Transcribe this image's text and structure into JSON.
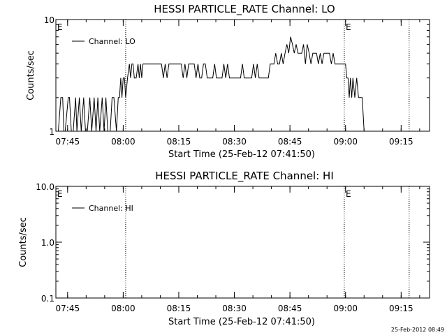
{
  "timestamp": "25-Feb-2012 08:49",
  "chart_data": [
    {
      "type": "line",
      "title": "HESSI PARTICLE_RATE Channel: LO",
      "xlabel": "Start Time (25-Feb-12 07:41:50)",
      "ylabel": "Counts/sec",
      "yscale": "log",
      "xlim": [
        "07:41:50",
        "09:22:40"
      ],
      "ylim": [
        1,
        10
      ],
      "x_ticks": [
        "07:45",
        "08:00",
        "08:15",
        "08:30",
        "08:45",
        "09:00",
        "09:15"
      ],
      "y_ticks": [
        "1",
        "10"
      ],
      "legend": {
        "placement": "top-left",
        "entry": "Channel: LO"
      },
      "markers": [
        {
          "label": "E",
          "time": "07:41:50"
        },
        {
          "label": "",
          "time": "08:00:40"
        },
        {
          "label": "E",
          "time": "08:59:40"
        },
        {
          "label": "",
          "time": "09:17:10"
        }
      ],
      "series": [
        {
          "name": "Channel: LO",
          "x": [
            "07:42:30",
            "07:43:10",
            "07:43:40",
            "07:44:00",
            "07:44:20",
            "07:45:10",
            "07:45:30",
            "07:46:00",
            "07:46:30",
            "07:47:10",
            "07:47:30",
            "07:48:10",
            "07:48:40",
            "07:49:20",
            "07:49:50",
            "07:50:20",
            "07:51:00",
            "07:51:30",
            "07:52:10",
            "07:52:40",
            "07:53:10",
            "07:53:40",
            "07:54:20",
            "07:54:50",
            "07:55:20",
            "07:55:50",
            "07:56:30",
            "07:57:00",
            "07:57:30",
            "07:58:10",
            "07:58:40",
            "07:59:00",
            "07:59:20",
            "07:59:40",
            "08:00:00",
            "08:00:20",
            "08:00:40",
            "08:01:10",
            "08:01:40",
            "08:02:00",
            "08:02:20",
            "08:02:40",
            "08:03:00",
            "08:03:30",
            "08:04:00",
            "08:04:20",
            "08:04:40",
            "08:05:00",
            "08:05:20",
            "08:05:50",
            "08:06:30",
            "08:07:10",
            "08:07:30",
            "08:08:00",
            "08:08:30",
            "08:09:00",
            "08:09:40",
            "08:10:20",
            "08:10:50",
            "08:11:20",
            "08:11:50",
            "08:12:20",
            "08:12:50",
            "08:13:20",
            "08:14:00",
            "08:14:30",
            "08:15:00",
            "08:15:40",
            "08:16:10",
            "08:16:40",
            "08:17:10",
            "08:17:40",
            "08:18:10",
            "08:18:40",
            "08:19:10",
            "08:19:40",
            "08:20:10",
            "08:20:40",
            "08:21:10",
            "08:21:40",
            "08:22:10",
            "08:22:40",
            "08:23:10",
            "08:23:40",
            "08:24:10",
            "08:24:40",
            "08:25:10",
            "08:25:40",
            "08:26:10",
            "08:26:40",
            "08:27:10",
            "08:27:40",
            "08:28:10",
            "08:28:40",
            "08:29:10",
            "08:29:40",
            "08:30:10",
            "08:30:40",
            "08:31:10",
            "08:31:40",
            "08:32:10",
            "08:32:40",
            "08:33:10",
            "08:33:40",
            "08:34:10",
            "08:34:40",
            "08:35:10",
            "08:35:40",
            "08:36:10",
            "08:36:40",
            "08:37:10",
            "08:37:40",
            "08:38:10",
            "08:38:40",
            "08:39:10",
            "08:39:40",
            "08:40:10",
            "08:40:40",
            "08:41:10",
            "08:41:40",
            "08:42:10",
            "08:42:40",
            "08:43:10",
            "08:43:40",
            "08:44:10",
            "08:44:40",
            "08:45:10",
            "08:45:40",
            "08:46:10",
            "08:46:40",
            "08:47:10",
            "08:47:40",
            "08:48:10",
            "08:48:40",
            "08:49:10",
            "08:49:40",
            "08:50:10",
            "08:50:40",
            "08:51:10",
            "08:51:40",
            "08:52:10",
            "08:52:40",
            "08:53:10",
            "08:53:40",
            "08:54:10",
            "08:54:40",
            "08:55:10",
            "08:55:40",
            "08:56:10",
            "08:56:40",
            "08:57:10",
            "08:57:40",
            "08:58:10",
            "08:58:40",
            "08:59:10",
            "08:59:40",
            "09:00:00",
            "09:00:20",
            "09:00:40",
            "09:01:00",
            "09:01:20",
            "09:01:40",
            "09:02:00",
            "09:02:30",
            "09:03:00",
            "09:03:30",
            "09:04:00",
            "09:04:30",
            "09:05:00",
            "09:05:20",
            "09:05:40",
            "09:06:00"
          ],
          "values": [
            1,
            2,
            2,
            1,
            1,
            2,
            2,
            1,
            1,
            2,
            1,
            2,
            1,
            2,
            1,
            1,
            2,
            1,
            2,
            1,
            2,
            1,
            2,
            1,
            2,
            1,
            1,
            2,
            2,
            1,
            2,
            2,
            3,
            2,
            3,
            3,
            2,
            3,
            4,
            3,
            4,
            4,
            3,
            3,
            4,
            3,
            4,
            3,
            4,
            4,
            4,
            4,
            4,
            4,
            4,
            4,
            4,
            4,
            3,
            4,
            3,
            4,
            4,
            4,
            4,
            4,
            4,
            4,
            3,
            4,
            3,
            4,
            4,
            4,
            4,
            3,
            4,
            3,
            3,
            4,
            4,
            3,
            3,
            3,
            3,
            4,
            3,
            3,
            3,
            3,
            4,
            3,
            4,
            3,
            3,
            3,
            3,
            3,
            3,
            3,
            4,
            3,
            3,
            3,
            3,
            3,
            4,
            3,
            4,
            3,
            3,
            3,
            3,
            3,
            3,
            4,
            4,
            4,
            5,
            4,
            4,
            5,
            4,
            5,
            6,
            5,
            7,
            6,
            5,
            6,
            5,
            5,
            5,
            6,
            4,
            6,
            5,
            4,
            5,
            5,
            5,
            4,
            5,
            4,
            5,
            5,
            5,
            5,
            4,
            5,
            4,
            4,
            4,
            4,
            4,
            4,
            4,
            3,
            3,
            2,
            3,
            2,
            3,
            2,
            3,
            2,
            2,
            2,
            1,
            1,
            1,
            1
          ]
        }
      ]
    },
    {
      "type": "line",
      "title": "HESSI PARTICLE_RATE Channel: HI",
      "xlabel": "Start Time (25-Feb-12 07:41:50)",
      "ylabel": "Counts/sec",
      "yscale": "log",
      "xlim": [
        "07:41:50",
        "09:22:40"
      ],
      "ylim": [
        0.1,
        10
      ],
      "x_ticks": [
        "07:45",
        "08:00",
        "08:15",
        "08:30",
        "08:45",
        "09:00",
        "09:15"
      ],
      "y_ticks": [
        "0.1",
        "1.0",
        "10.0"
      ],
      "legend": {
        "placement": "top-left",
        "entry": "Channel: HI"
      },
      "markers": [
        {
          "label": "E",
          "time": "07:41:50"
        },
        {
          "label": "",
          "time": "08:00:40"
        },
        {
          "label": "E",
          "time": "08:59:40"
        },
        {
          "label": "",
          "time": "09:17:10"
        }
      ],
      "series": [
        {
          "name": "Channel: HI",
          "x": [],
          "values": []
        }
      ]
    }
  ]
}
